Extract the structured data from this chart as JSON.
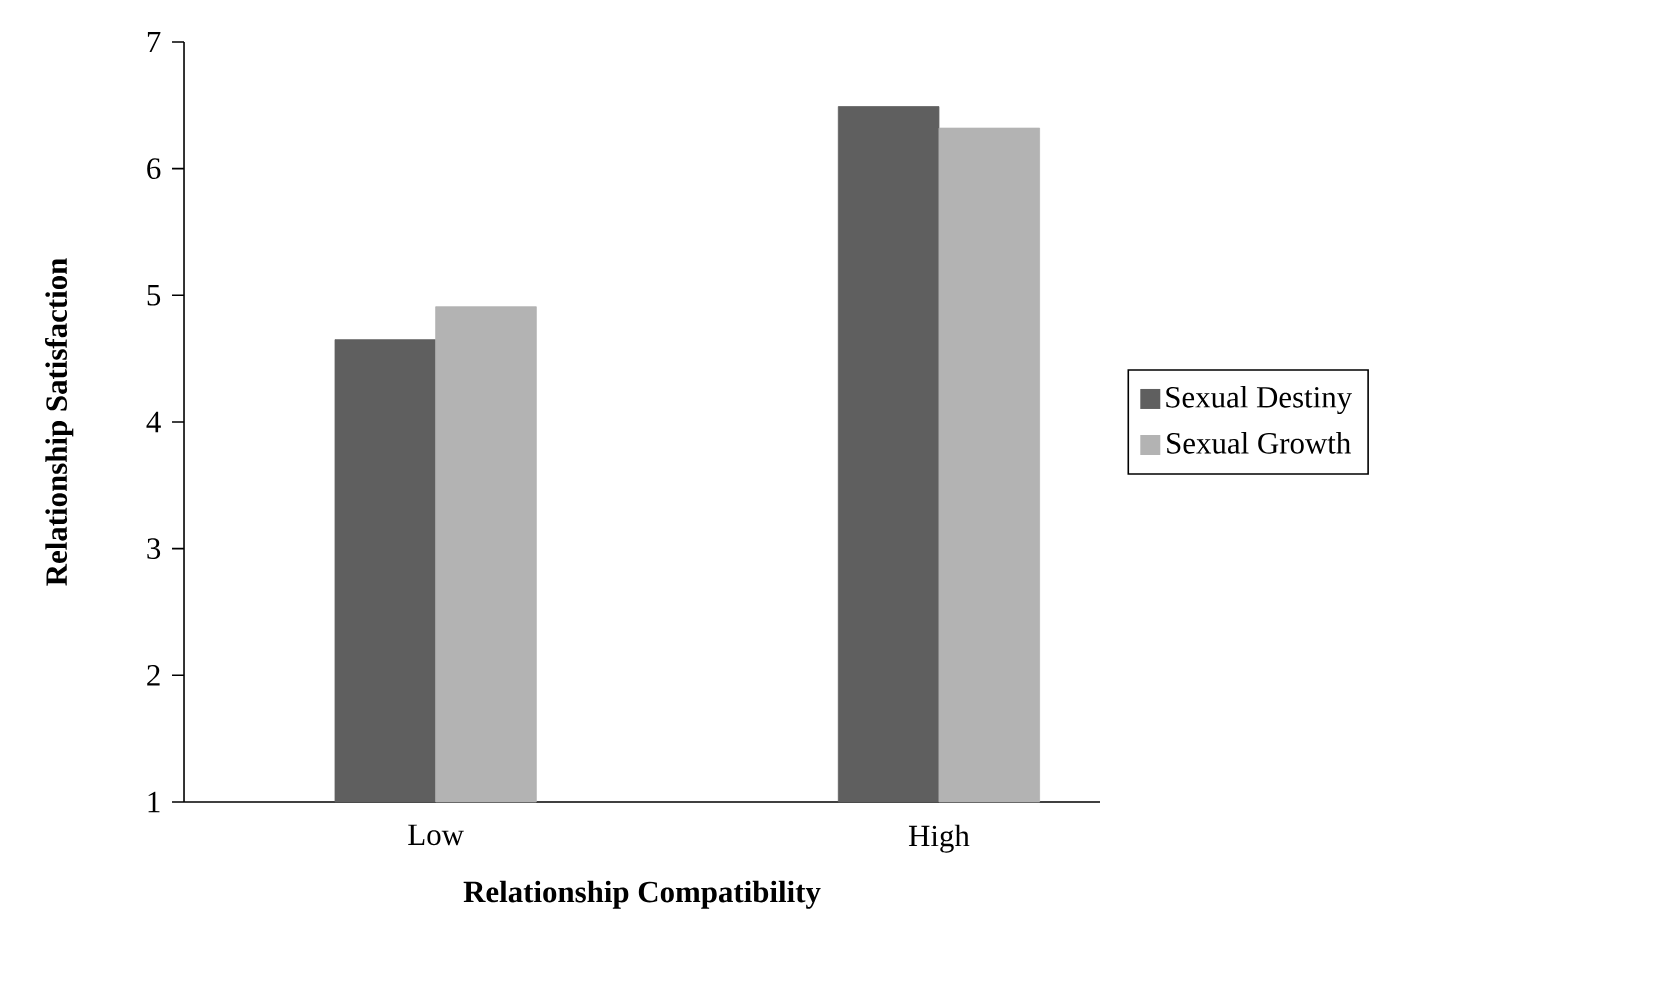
{
  "chart_data": {
    "type": "bar",
    "xlabel": "Relationship Compatibility",
    "ylabel": "Relationship Satisfaction",
    "categories": [
      "Low",
      "High"
    ],
    "series": [
      {
        "name": "Sexual Destiny",
        "color": "#5f5f5f",
        "values": [
          4.65,
          6.49
        ]
      },
      {
        "name": "Sexual Growth",
        "color": "#b3b3b3",
        "values": [
          4.91,
          6.32
        ]
      }
    ],
    "ylim": [
      1,
      7
    ],
    "yticks": [
      1,
      2,
      3,
      4,
      5,
      6,
      7
    ],
    "grid": false,
    "legend": "right"
  }
}
